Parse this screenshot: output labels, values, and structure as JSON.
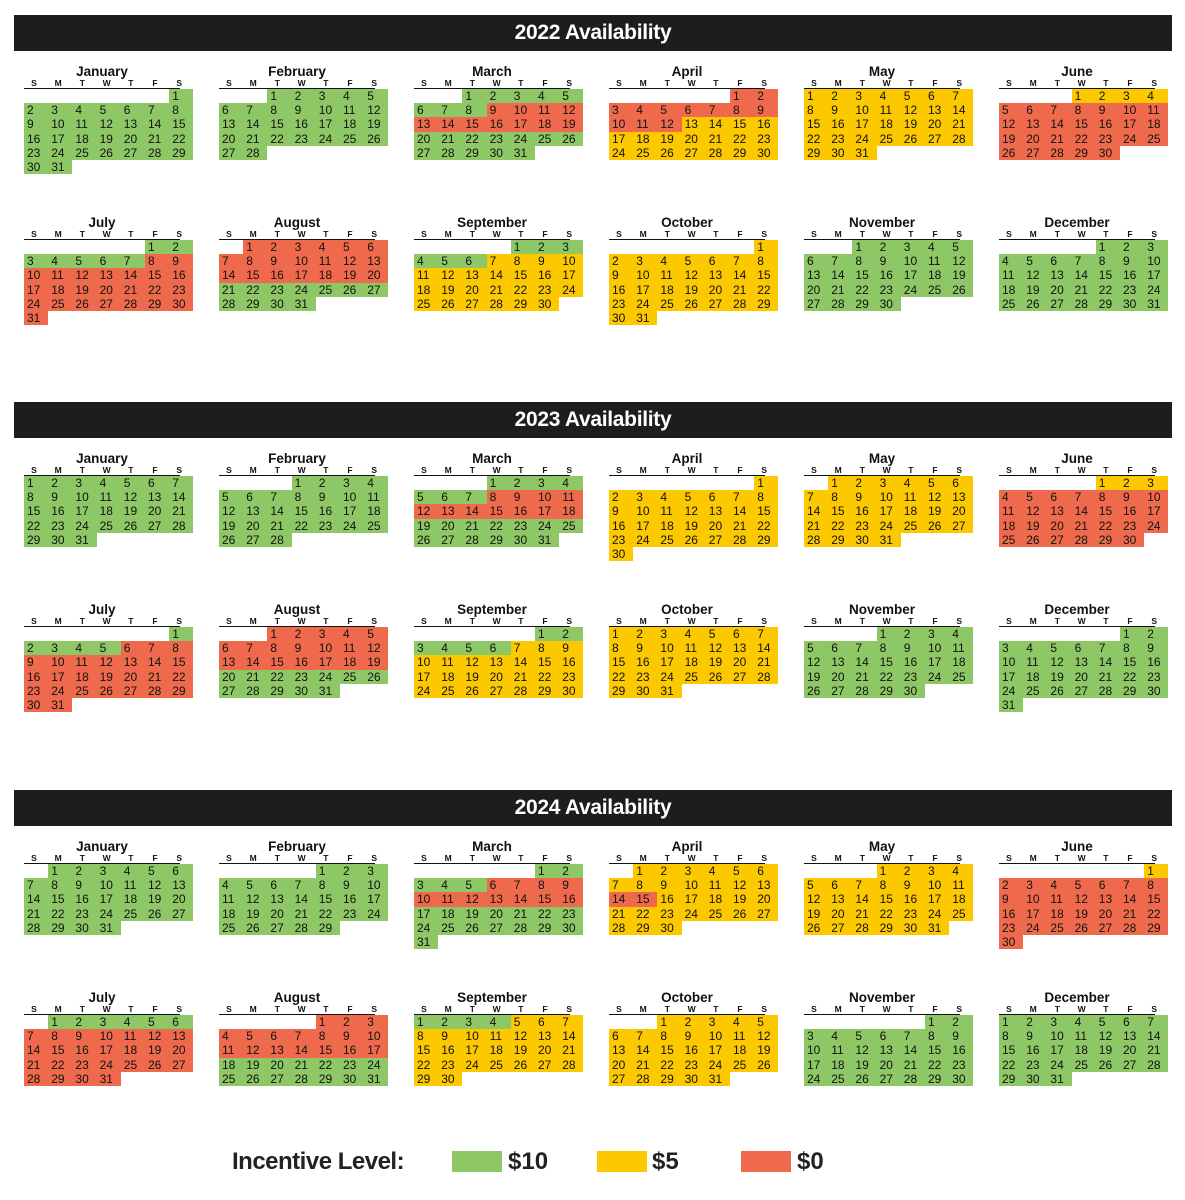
{
  "dow_labels": [
    "S",
    "M",
    "T",
    "W",
    "T",
    "F",
    "S"
  ],
  "colors": {
    "g": "#8ec765",
    "y": "#fcc800",
    "r": "#ef6a4c",
    "header": "#1d1d1d"
  },
  "legend": {
    "title": "Incentive Level:",
    "items": [
      {
        "level": "g",
        "label": "$10"
      },
      {
        "level": "y",
        "label": "$5"
      },
      {
        "level": "r",
        "label": "$0"
      }
    ]
  },
  "years": [
    {
      "title": "2022 Availability",
      "months": [
        {
          "name": "January",
          "start": 6,
          "days": 31,
          "levels": [
            "g"
          ]
        },
        {
          "name": "February",
          "start": 2,
          "days": 28,
          "levels": [
            "g"
          ]
        },
        {
          "name": "March",
          "start": 2,
          "days": 31,
          "levels": [
            "g",
            "g",
            "g",
            "g",
            "g",
            "g",
            "g",
            "g",
            "r",
            "r",
            "r",
            "r",
            "r",
            "r",
            "r",
            "r",
            "r",
            "r",
            "r",
            "g",
            "g",
            "g",
            "g",
            "g",
            "g",
            "g",
            "g",
            "g",
            "g",
            "g",
            "g"
          ]
        },
        {
          "name": "April",
          "start": 5,
          "days": 30,
          "levels": [
            "r",
            "r",
            "r",
            "r",
            "r",
            "r",
            "r",
            "r",
            "r",
            "r",
            "r",
            "r",
            "y",
            "y",
            "y",
            "y",
            "y",
            "y",
            "y",
            "y",
            "y",
            "y",
            "y",
            "y",
            "y",
            "y",
            "y",
            "y",
            "y",
            "y"
          ]
        },
        {
          "name": "May",
          "start": 0,
          "days": 31,
          "levels": [
            "y"
          ]
        },
        {
          "name": "June",
          "start": 3,
          "days": 30,
          "levels": [
            "y",
            "y",
            "y",
            "y",
            "r",
            "r",
            "r",
            "r",
            "r",
            "r",
            "r",
            "r",
            "r",
            "r",
            "r",
            "r",
            "r",
            "r",
            "r",
            "r",
            "r",
            "r",
            "r",
            "r",
            "r",
            "r",
            "r",
            "r",
            "r",
            "r"
          ]
        },
        {
          "name": "July",
          "start": 5,
          "days": 31,
          "levels": [
            "g",
            "g",
            "g",
            "g",
            "g",
            "g",
            "g",
            "r",
            "r",
            "r",
            "r",
            "r",
            "r",
            "r",
            "r",
            "r",
            "r",
            "r",
            "r",
            "r",
            "r",
            "r",
            "r",
            "r",
            "r",
            "r",
            "r",
            "r",
            "r",
            "r",
            "r"
          ]
        },
        {
          "name": "August",
          "start": 1,
          "days": 31,
          "levels": [
            "r",
            "r",
            "r",
            "r",
            "r",
            "r",
            "r",
            "r",
            "r",
            "r",
            "r",
            "r",
            "r",
            "r",
            "r",
            "r",
            "r",
            "r",
            "r",
            "r",
            "g",
            "g",
            "g",
            "g",
            "g",
            "g",
            "g",
            "g",
            "g",
            "g",
            "g"
          ]
        },
        {
          "name": "September",
          "start": 4,
          "days": 30,
          "levels": [
            "g",
            "g",
            "g",
            "g",
            "g",
            "g",
            "y",
            "y",
            "y",
            "y",
            "y",
            "y",
            "y",
            "y",
            "y",
            "y",
            "y",
            "y",
            "y",
            "y",
            "y",
            "y",
            "y",
            "y",
            "y",
            "y",
            "y",
            "y",
            "y",
            "y"
          ]
        },
        {
          "name": "October",
          "start": 6,
          "days": 31,
          "levels": [
            "y"
          ]
        },
        {
          "name": "November",
          "start": 2,
          "days": 30,
          "levels": [
            "g"
          ]
        },
        {
          "name": "December",
          "start": 4,
          "days": 31,
          "levels": [
            "g"
          ]
        }
      ]
    },
    {
      "title": "2023 Availability",
      "months": [
        {
          "name": "January",
          "start": 0,
          "days": 31,
          "levels": [
            "g"
          ]
        },
        {
          "name": "February",
          "start": 3,
          "days": 28,
          "levels": [
            "g"
          ]
        },
        {
          "name": "March",
          "start": 3,
          "days": 31,
          "levels": [
            "g",
            "g",
            "g",
            "g",
            "g",
            "g",
            "g",
            "r",
            "r",
            "r",
            "r",
            "r",
            "r",
            "r",
            "r",
            "r",
            "r",
            "r",
            "g",
            "g",
            "g",
            "g",
            "g",
            "g",
            "g",
            "g",
            "g",
            "g",
            "g",
            "g",
            "g"
          ]
        },
        {
          "name": "April",
          "start": 6,
          "days": 30,
          "levels": [
            "y"
          ]
        },
        {
          "name": "May",
          "start": 1,
          "days": 31,
          "levels": [
            "y"
          ]
        },
        {
          "name": "June",
          "start": 4,
          "days": 30,
          "levels": [
            "y",
            "y",
            "y",
            "r",
            "r",
            "r",
            "r",
            "r",
            "r",
            "r",
            "r",
            "r",
            "r",
            "r",
            "r",
            "r",
            "r",
            "r",
            "r",
            "r",
            "r",
            "r",
            "r",
            "r",
            "r",
            "r",
            "r",
            "r",
            "r",
            "r"
          ]
        },
        {
          "name": "July",
          "start": 6,
          "days": 31,
          "levels": [
            "g",
            "g",
            "g",
            "g",
            "g",
            "r",
            "r",
            "r",
            "r",
            "r",
            "r",
            "r",
            "r",
            "r",
            "r",
            "r",
            "r",
            "r",
            "r",
            "r",
            "r",
            "r",
            "r",
            "r",
            "r",
            "r",
            "r",
            "r",
            "r",
            "r",
            "r"
          ]
        },
        {
          "name": "August",
          "start": 2,
          "days": 31,
          "levels": [
            "r",
            "r",
            "r",
            "r",
            "r",
            "r",
            "r",
            "r",
            "r",
            "r",
            "r",
            "r",
            "r",
            "r",
            "r",
            "r",
            "r",
            "r",
            "r",
            "g",
            "g",
            "g",
            "g",
            "g",
            "g",
            "g",
            "g",
            "g",
            "g",
            "g",
            "g"
          ]
        },
        {
          "name": "September",
          "start": 5,
          "days": 30,
          "levels": [
            "g",
            "g",
            "g",
            "g",
            "g",
            "g",
            "y",
            "y",
            "y",
            "y",
            "y",
            "y",
            "y",
            "y",
            "y",
            "y",
            "y",
            "y",
            "y",
            "y",
            "y",
            "y",
            "y",
            "y",
            "y",
            "y",
            "y",
            "y",
            "y",
            "y"
          ]
        },
        {
          "name": "October",
          "start": 0,
          "days": 31,
          "levels": [
            "y"
          ]
        },
        {
          "name": "November",
          "start": 3,
          "days": 30,
          "levels": [
            "g"
          ]
        },
        {
          "name": "December",
          "start": 5,
          "days": 31,
          "levels": [
            "g"
          ]
        }
      ]
    },
    {
      "title": "2024 Availability",
      "months": [
        {
          "name": "January",
          "start": 1,
          "days": 31,
          "levels": [
            "g"
          ]
        },
        {
          "name": "February",
          "start": 4,
          "days": 29,
          "levels": [
            "g"
          ]
        },
        {
          "name": "March",
          "start": 5,
          "days": 31,
          "levels": [
            "g",
            "g",
            "g",
            "g",
            "g",
            "r",
            "r",
            "r",
            "r",
            "r",
            "r",
            "r",
            "r",
            "r",
            "r",
            "r",
            "g",
            "g",
            "g",
            "g",
            "g",
            "g",
            "g",
            "g",
            "g",
            "g",
            "g",
            "g",
            "g",
            "g",
            "g"
          ]
        },
        {
          "name": "April",
          "start": 1,
          "days": 30,
          "levels": [
            "y",
            "y",
            "y",
            "y",
            "y",
            "y",
            "y",
            "y",
            "y",
            "y",
            "y",
            "y",
            "y",
            "r",
            "r",
            "y",
            "y",
            "y",
            "y",
            "y",
            "y",
            "y",
            "y",
            "y",
            "y",
            "y",
            "y",
            "y",
            "y",
            "y"
          ]
        },
        {
          "name": "May",
          "start": 3,
          "days": 31,
          "levels": [
            "y"
          ]
        },
        {
          "name": "June",
          "start": 6,
          "days": 30,
          "levels": [
            "y",
            "r",
            "r",
            "r",
            "r",
            "r",
            "r",
            "r",
            "r",
            "r",
            "r",
            "r",
            "r",
            "r",
            "r",
            "r",
            "r",
            "r",
            "r",
            "r",
            "r",
            "r",
            "r",
            "r",
            "r",
            "r",
            "r",
            "r",
            "r",
            "r"
          ]
        },
        {
          "name": "July",
          "start": 1,
          "days": 31,
          "levels": [
            "g",
            "g",
            "g",
            "g",
            "g",
            "g",
            "r",
            "r",
            "r",
            "r",
            "r",
            "r",
            "r",
            "r",
            "r",
            "r",
            "r",
            "r",
            "r",
            "r",
            "r",
            "r",
            "r",
            "r",
            "r",
            "r",
            "r",
            "r",
            "r",
            "r",
            "r"
          ]
        },
        {
          "name": "August",
          "start": 4,
          "days": 31,
          "levels": [
            "r",
            "r",
            "r",
            "r",
            "r",
            "r",
            "r",
            "r",
            "r",
            "r",
            "r",
            "r",
            "r",
            "r",
            "r",
            "r",
            "r",
            "g",
            "g",
            "g",
            "g",
            "g",
            "g",
            "g",
            "g",
            "g",
            "g",
            "g",
            "g",
            "g",
            "g"
          ]
        },
        {
          "name": "September",
          "start": 0,
          "days": 30,
          "levels": [
            "g",
            "g",
            "g",
            "g",
            "y",
            "y",
            "y",
            "y",
            "y",
            "y",
            "y",
            "y",
            "y",
            "y",
            "y",
            "y",
            "y",
            "y",
            "y",
            "y",
            "y",
            "y",
            "y",
            "y",
            "y",
            "y",
            "y",
            "y",
            "y",
            "y"
          ]
        },
        {
          "name": "October",
          "start": 2,
          "days": 31,
          "levels": [
            "y"
          ]
        },
        {
          "name": "November",
          "start": 5,
          "days": 30,
          "levels": [
            "g"
          ]
        },
        {
          "name": "December",
          "start": 0,
          "days": 31,
          "levels": [
            "g"
          ]
        }
      ]
    }
  ]
}
